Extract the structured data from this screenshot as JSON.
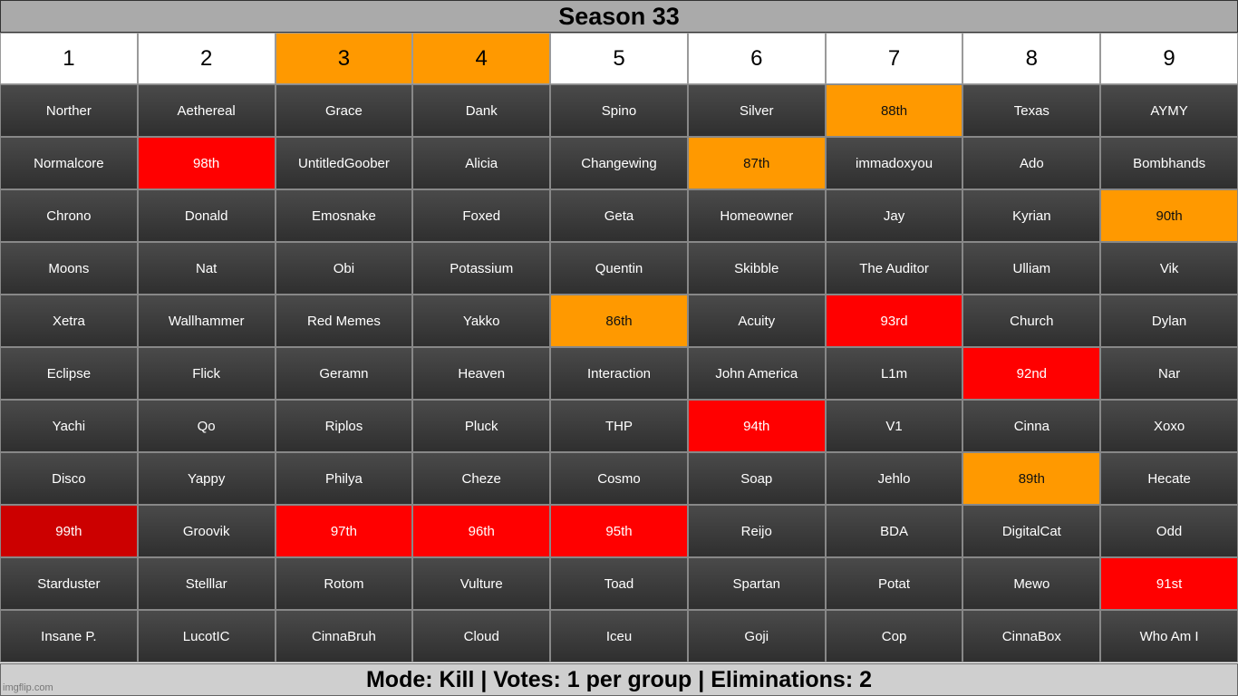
{
  "title": "Season 33",
  "footer": "Mode: Kill | Votes: 1 per group | Eliminations: 2",
  "watermark": "imgflip.com",
  "colors": {
    "orange": "#ff9900",
    "red": "#ff0000",
    "darkred": "#cc0000",
    "cell": "#3c3c3c"
  },
  "headers": [
    {
      "label": "1",
      "style": "white"
    },
    {
      "label": "2",
      "style": "white"
    },
    {
      "label": "3",
      "style": "orange"
    },
    {
      "label": "4",
      "style": "orange"
    },
    {
      "label": "5",
      "style": "white"
    },
    {
      "label": "6",
      "style": "white"
    },
    {
      "label": "7",
      "style": "white"
    },
    {
      "label": "8",
      "style": "white"
    },
    {
      "label": "9",
      "style": "white"
    }
  ],
  "rows": [
    [
      {
        "t": "Norther",
        "s": ""
      },
      {
        "t": "Aethereal",
        "s": ""
      },
      {
        "t": "Grace",
        "s": ""
      },
      {
        "t": "Dank",
        "s": ""
      },
      {
        "t": "Spino",
        "s": ""
      },
      {
        "t": "Silver",
        "s": ""
      },
      {
        "t": "88th",
        "s": "orange"
      },
      {
        "t": "Texas",
        "s": ""
      },
      {
        "t": "AYMY",
        "s": ""
      }
    ],
    [
      {
        "t": "Normalcore",
        "s": ""
      },
      {
        "t": "98th",
        "s": "red"
      },
      {
        "t": "UntitledGoober",
        "s": ""
      },
      {
        "t": "Alicia",
        "s": ""
      },
      {
        "t": "Changewing",
        "s": ""
      },
      {
        "t": "87th",
        "s": "orange"
      },
      {
        "t": "immadoxyou",
        "s": ""
      },
      {
        "t": "Ado",
        "s": ""
      },
      {
        "t": "Bombhands",
        "s": ""
      }
    ],
    [
      {
        "t": "Chrono",
        "s": ""
      },
      {
        "t": "Donald",
        "s": ""
      },
      {
        "t": "Emosnake",
        "s": ""
      },
      {
        "t": "Foxed",
        "s": ""
      },
      {
        "t": "Geta",
        "s": ""
      },
      {
        "t": "Homeowner",
        "s": ""
      },
      {
        "t": "Jay",
        "s": ""
      },
      {
        "t": "Kyrian",
        "s": ""
      },
      {
        "t": "90th",
        "s": "orange"
      }
    ],
    [
      {
        "t": "Moons",
        "s": ""
      },
      {
        "t": "Nat",
        "s": ""
      },
      {
        "t": "Obi",
        "s": ""
      },
      {
        "t": "Potassium",
        "s": ""
      },
      {
        "t": "Quentin",
        "s": ""
      },
      {
        "t": "Skibble",
        "s": ""
      },
      {
        "t": "The Auditor",
        "s": ""
      },
      {
        "t": "Ulliam",
        "s": ""
      },
      {
        "t": "Vik",
        "s": ""
      }
    ],
    [
      {
        "t": "Xetra",
        "s": ""
      },
      {
        "t": "Wallhammer",
        "s": ""
      },
      {
        "t": "Red Memes",
        "s": ""
      },
      {
        "t": "Yakko",
        "s": ""
      },
      {
        "t": "86th",
        "s": "orange"
      },
      {
        "t": "Acuity",
        "s": ""
      },
      {
        "t": "93rd",
        "s": "red"
      },
      {
        "t": "Church",
        "s": ""
      },
      {
        "t": "Dylan",
        "s": ""
      }
    ],
    [
      {
        "t": "Eclipse",
        "s": ""
      },
      {
        "t": "Flick",
        "s": ""
      },
      {
        "t": "Geramn",
        "s": ""
      },
      {
        "t": "Heaven",
        "s": ""
      },
      {
        "t": "Interaction",
        "s": ""
      },
      {
        "t": "John America",
        "s": ""
      },
      {
        "t": "L1m",
        "s": ""
      },
      {
        "t": "92nd",
        "s": "red"
      },
      {
        "t": "Nar",
        "s": ""
      }
    ],
    [
      {
        "t": "Yachi",
        "s": ""
      },
      {
        "t": "Qo",
        "s": ""
      },
      {
        "t": "Riplos",
        "s": ""
      },
      {
        "t": "Pluck",
        "s": ""
      },
      {
        "t": "THP",
        "s": ""
      },
      {
        "t": "94th",
        "s": "red"
      },
      {
        "t": "V1",
        "s": ""
      },
      {
        "t": "Cinna",
        "s": ""
      },
      {
        "t": "Xoxo",
        "s": ""
      }
    ],
    [
      {
        "t": "Disco",
        "s": ""
      },
      {
        "t": "Yappy",
        "s": ""
      },
      {
        "t": "Philya",
        "s": ""
      },
      {
        "t": "Cheze",
        "s": ""
      },
      {
        "t": "Cosmo",
        "s": ""
      },
      {
        "t": "Soap",
        "s": ""
      },
      {
        "t": "Jehlo",
        "s": ""
      },
      {
        "t": "89th",
        "s": "orange"
      },
      {
        "t": "Hecate",
        "s": ""
      }
    ],
    [
      {
        "t": "99th",
        "s": "darkred"
      },
      {
        "t": "Groovik",
        "s": ""
      },
      {
        "t": "97th",
        "s": "red"
      },
      {
        "t": "96th",
        "s": "red"
      },
      {
        "t": "95th",
        "s": "red"
      },
      {
        "t": "Reijo",
        "s": ""
      },
      {
        "t": "BDA",
        "s": ""
      },
      {
        "t": "DigitalCat",
        "s": ""
      },
      {
        "t": "Odd",
        "s": ""
      }
    ],
    [
      {
        "t": "Starduster",
        "s": ""
      },
      {
        "t": "Stelllar",
        "s": ""
      },
      {
        "t": "Rotom",
        "s": ""
      },
      {
        "t": "Vulture",
        "s": ""
      },
      {
        "t": "Toad",
        "s": ""
      },
      {
        "t": "Spartan",
        "s": ""
      },
      {
        "t": "Potat",
        "s": ""
      },
      {
        "t": "Mewo",
        "s": ""
      },
      {
        "t": "91st",
        "s": "red"
      }
    ],
    [
      {
        "t": "Insane P.",
        "s": ""
      },
      {
        "t": "LucotIC",
        "s": ""
      },
      {
        "t": "CinnaBruh",
        "s": ""
      },
      {
        "t": "Cloud",
        "s": ""
      },
      {
        "t": "Iceu",
        "s": ""
      },
      {
        "t": "Goji",
        "s": ""
      },
      {
        "t": "Cop",
        "s": ""
      },
      {
        "t": "CinnaBox",
        "s": ""
      },
      {
        "t": "Who Am I",
        "s": ""
      }
    ]
  ]
}
